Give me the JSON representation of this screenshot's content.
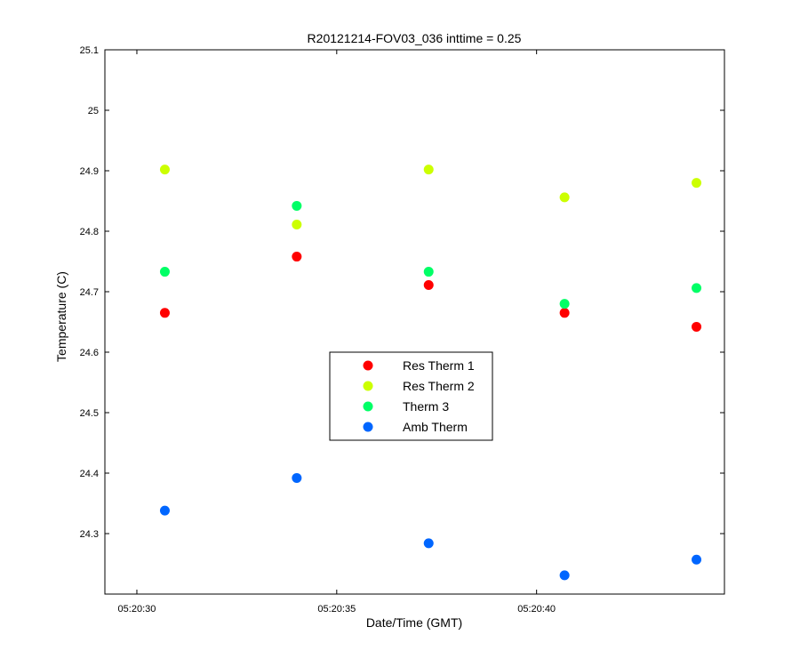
{
  "chart_data": {
    "type": "scatter",
    "title": "R20121214-FOV03_036 inttime = 0.25",
    "xlabel": "Date/Time (GMT)",
    "ylabel": "Temperature (C)",
    "x_ticks": [
      "05:20:30",
      "05:20:35",
      "05:20:40"
    ],
    "x_tick_values": [
      30,
      35,
      40
    ],
    "x_units": "seconds past 05:20:00",
    "xlim": [
      29.2,
      44.7
    ],
    "ylim": [
      24.2,
      25.1
    ],
    "y_ticks": [
      "24.3",
      "24.4",
      "24.5",
      "24.6",
      "24.7",
      "24.8",
      "24.9",
      "25",
      "25.1"
    ],
    "y_tick_values": [
      24.3,
      24.4,
      24.5,
      24.6,
      24.7,
      24.8,
      24.9,
      25.0,
      25.1
    ],
    "x": [
      30.7,
      34.0,
      37.3,
      40.7,
      44.0
    ],
    "grid": false,
    "legend_position": "center",
    "series": [
      {
        "name": "Res Therm 1",
        "color": "#ff0000",
        "values": [
          24.665,
          24.758,
          24.711,
          24.665,
          24.642
        ]
      },
      {
        "name": "Res Therm 2",
        "color": "#ccff00",
        "values": [
          24.902,
          24.811,
          24.902,
          24.856,
          24.88
        ]
      },
      {
        "name": "Therm 3",
        "color": "#00ff66",
        "values": [
          24.733,
          24.842,
          24.733,
          24.68,
          24.706
        ]
      },
      {
        "name": "Amb Therm",
        "color": "#0066ff",
        "values": [
          24.338,
          24.392,
          24.284,
          24.231,
          24.257
        ]
      }
    ]
  }
}
